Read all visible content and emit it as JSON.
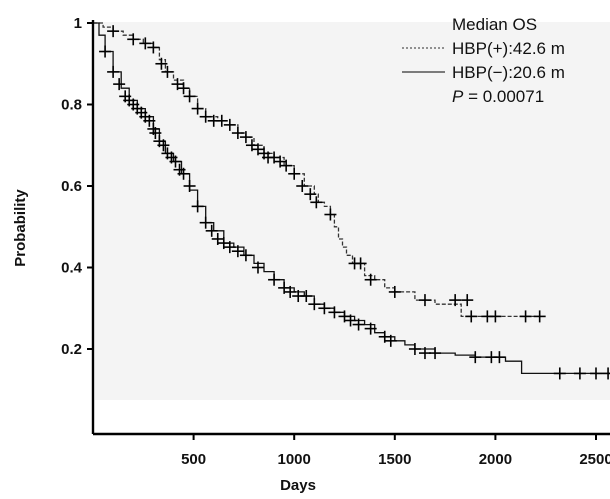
{
  "chart_data": {
    "type": "line",
    "xlabel": "Days",
    "ylabel": "Probability",
    "xlim": [
      0,
      2620
    ],
    "ylim": [
      0.08,
      1.0
    ],
    "x_ticks": [
      500,
      1000,
      1500,
      2000,
      2500
    ],
    "x_tick_labels": [
      "500",
      "1000",
      "1500",
      "2000",
      "2500"
    ],
    "y_ticks": [
      0.2,
      0.4,
      0.6,
      0.8,
      1.0
    ],
    "y_tick_labels": [
      "0.2",
      "0.4",
      "0.6",
      "0.8",
      "1"
    ],
    "grid": false,
    "legend_placement": "top-right",
    "legend": {
      "title": "Median OS",
      "entries": [
        "HBP(+):42.6 m",
        "HBP(−):20.6 m"
      ],
      "p_label": "P",
      "p_value": " = 0.00071"
    },
    "series": [
      {
        "name": "HBP(+):42.6 m",
        "line_style": "dashed",
        "color": "#333333",
        "steps": [
          [
            0,
            1.0
          ],
          [
            50,
            0.99
          ],
          [
            100,
            0.98
          ],
          [
            150,
            0.97
          ],
          [
            200,
            0.96
          ],
          [
            250,
            0.95
          ],
          [
            300,
            0.94
          ],
          [
            330,
            0.91
          ],
          [
            360,
            0.88
          ],
          [
            400,
            0.86
          ],
          [
            450,
            0.84
          ],
          [
            480,
            0.82
          ],
          [
            520,
            0.79
          ],
          [
            560,
            0.77
          ],
          [
            620,
            0.76
          ],
          [
            680,
            0.75
          ],
          [
            720,
            0.73
          ],
          [
            760,
            0.72
          ],
          [
            800,
            0.7
          ],
          [
            850,
            0.68
          ],
          [
            900,
            0.67
          ],
          [
            950,
            0.65
          ],
          [
            1000,
            0.63
          ],
          [
            1050,
            0.6
          ],
          [
            1100,
            0.58
          ],
          [
            1120,
            0.56
          ],
          [
            1150,
            0.55
          ],
          [
            1180,
            0.53
          ],
          [
            1200,
            0.5
          ],
          [
            1220,
            0.47
          ],
          [
            1240,
            0.45
          ],
          [
            1260,
            0.43
          ],
          [
            1290,
            0.41
          ],
          [
            1350,
            0.38
          ],
          [
            1400,
            0.37
          ],
          [
            1450,
            0.35
          ],
          [
            1500,
            0.34
          ],
          [
            1600,
            0.32
          ],
          [
            1700,
            0.31
          ],
          [
            1830,
            0.28
          ],
          [
            2200,
            0.28
          ]
        ],
        "censored": [
          [
            100,
            0.98
          ],
          [
            200,
            0.96
          ],
          [
            260,
            0.95
          ],
          [
            300,
            0.94
          ],
          [
            340,
            0.9
          ],
          [
            370,
            0.88
          ],
          [
            420,
            0.85
          ],
          [
            450,
            0.84
          ],
          [
            480,
            0.82
          ],
          [
            520,
            0.79
          ],
          [
            560,
            0.77
          ],
          [
            600,
            0.76
          ],
          [
            640,
            0.76
          ],
          [
            680,
            0.75
          ],
          [
            720,
            0.73
          ],
          [
            760,
            0.72
          ],
          [
            790,
            0.7
          ],
          [
            820,
            0.69
          ],
          [
            850,
            0.68
          ],
          [
            870,
            0.67
          ],
          [
            900,
            0.67
          ],
          [
            930,
            0.66
          ],
          [
            960,
            0.65
          ],
          [
            1000,
            0.63
          ],
          [
            1040,
            0.6
          ],
          [
            1080,
            0.58
          ],
          [
            1110,
            0.56
          ],
          [
            1180,
            0.53
          ],
          [
            1300,
            0.41
          ],
          [
            1330,
            0.41
          ],
          [
            1380,
            0.37
          ],
          [
            1500,
            0.34
          ],
          [
            1650,
            0.32
          ],
          [
            1800,
            0.32
          ],
          [
            1860,
            0.32
          ],
          [
            1880,
            0.28
          ],
          [
            1960,
            0.28
          ],
          [
            2000,
            0.28
          ],
          [
            2150,
            0.28
          ],
          [
            2220,
            0.28
          ]
        ]
      },
      {
        "name": "HBP(−):20.6 m",
        "line_style": "solid",
        "color": "#111111",
        "steps": [
          [
            0,
            1.0
          ],
          [
            30,
            0.97
          ],
          [
            60,
            0.93
          ],
          [
            100,
            0.88
          ],
          [
            140,
            0.84
          ],
          [
            180,
            0.81
          ],
          [
            220,
            0.79
          ],
          [
            260,
            0.77
          ],
          [
            300,
            0.74
          ],
          [
            330,
            0.71
          ],
          [
            360,
            0.68
          ],
          [
            400,
            0.66
          ],
          [
            440,
            0.63
          ],
          [
            480,
            0.59
          ],
          [
            520,
            0.55
          ],
          [
            560,
            0.51
          ],
          [
            600,
            0.49
          ],
          [
            650,
            0.46
          ],
          [
            700,
            0.45
          ],
          [
            750,
            0.43
          ],
          [
            800,
            0.41
          ],
          [
            850,
            0.39
          ],
          [
            900,
            0.37
          ],
          [
            950,
            0.35
          ],
          [
            1000,
            0.34
          ],
          [
            1050,
            0.33
          ],
          [
            1100,
            0.31
          ],
          [
            1150,
            0.3
          ],
          [
            1200,
            0.29
          ],
          [
            1250,
            0.28
          ],
          [
            1300,
            0.27
          ],
          [
            1350,
            0.26
          ],
          [
            1400,
            0.24
          ],
          [
            1450,
            0.23
          ],
          [
            1500,
            0.22
          ],
          [
            1550,
            0.21
          ],
          [
            1600,
            0.2
          ],
          [
            1700,
            0.19
          ],
          [
            1800,
            0.185
          ],
          [
            1900,
            0.18
          ],
          [
            2000,
            0.18
          ],
          [
            2050,
            0.17
          ],
          [
            2130,
            0.14
          ],
          [
            2620,
            0.14
          ]
        ],
        "censored": [
          [
            60,
            0.93
          ],
          [
            100,
            0.88
          ],
          [
            130,
            0.85
          ],
          [
            160,
            0.82
          ],
          [
            180,
            0.81
          ],
          [
            200,
            0.8
          ],
          [
            220,
            0.79
          ],
          [
            240,
            0.78
          ],
          [
            260,
            0.77
          ],
          [
            280,
            0.76
          ],
          [
            300,
            0.74
          ],
          [
            310,
            0.73
          ],
          [
            330,
            0.71
          ],
          [
            350,
            0.7
          ],
          [
            370,
            0.68
          ],
          [
            390,
            0.67
          ],
          [
            410,
            0.66
          ],
          [
            430,
            0.64
          ],
          [
            450,
            0.63
          ],
          [
            480,
            0.6
          ],
          [
            520,
            0.55
          ],
          [
            560,
            0.51
          ],
          [
            590,
            0.49
          ],
          [
            620,
            0.47
          ],
          [
            650,
            0.46
          ],
          [
            680,
            0.45
          ],
          [
            720,
            0.44
          ],
          [
            760,
            0.43
          ],
          [
            820,
            0.4
          ],
          [
            900,
            0.37
          ],
          [
            950,
            0.35
          ],
          [
            980,
            0.34
          ],
          [
            1020,
            0.33
          ],
          [
            1060,
            0.33
          ],
          [
            1100,
            0.31
          ],
          [
            1150,
            0.3
          ],
          [
            1200,
            0.29
          ],
          [
            1250,
            0.28
          ],
          [
            1280,
            0.27
          ],
          [
            1320,
            0.26
          ],
          [
            1380,
            0.25
          ],
          [
            1450,
            0.23
          ],
          [
            1480,
            0.22
          ],
          [
            1600,
            0.2
          ],
          [
            1650,
            0.19
          ],
          [
            1700,
            0.19
          ],
          [
            1900,
            0.18
          ],
          [
            1980,
            0.18
          ],
          [
            2020,
            0.18
          ],
          [
            2320,
            0.14
          ],
          [
            2420,
            0.14
          ],
          [
            2500,
            0.14
          ],
          [
            2560,
            0.14
          ],
          [
            2620,
            0.14
          ]
        ]
      }
    ]
  }
}
